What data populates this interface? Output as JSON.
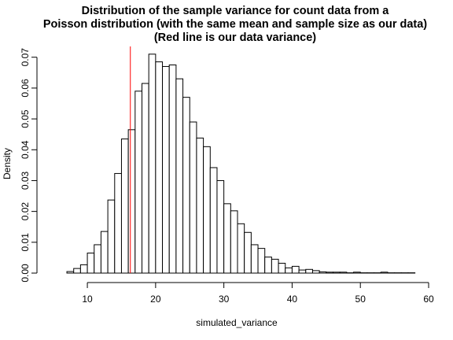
{
  "chart_data": {
    "type": "bar",
    "title": [
      "Distribution of the sample variance for count data from a",
      "Poisson distribution (with the same mean and sample size as our data)",
      "(Red line is our data variance)"
    ],
    "xlabel": "simulated_variance",
    "ylabel": "Density",
    "xlim": [
      7,
      58
    ],
    "ylim": [
      0,
      0.071
    ],
    "x_ticks": [
      10,
      20,
      30,
      40,
      50,
      60
    ],
    "x_tick_labels": [
      "10",
      "20",
      "30",
      "40",
      "50",
      "60"
    ],
    "y_ticks": [
      0,
      0.01,
      0.02,
      0.03,
      0.04,
      0.05,
      0.06,
      0.07
    ],
    "y_tick_labels": [
      "0.00",
      "0.01",
      "0.02",
      "0.03",
      "0.04",
      "0.05",
      "0.06",
      "0.07"
    ],
    "bin_width": 1,
    "bin_starts": [
      7,
      8,
      9,
      10,
      11,
      12,
      13,
      14,
      15,
      16,
      17,
      18,
      19,
      20,
      21,
      22,
      23,
      24,
      25,
      26,
      27,
      28,
      29,
      30,
      31,
      32,
      33,
      34,
      35,
      36,
      37,
      38,
      39,
      40,
      41,
      42,
      43,
      44,
      45,
      46,
      47,
      48,
      49,
      50,
      51,
      52,
      53,
      54,
      55,
      56,
      57
    ],
    "values": [
      0.0005,
      0.0015,
      0.0027,
      0.0065,
      0.0092,
      0.0135,
      0.0237,
      0.0323,
      0.0435,
      0.0465,
      0.059,
      0.0615,
      0.071,
      0.0685,
      0.067,
      0.0675,
      0.063,
      0.057,
      0.049,
      0.0438,
      0.041,
      0.0342,
      0.03,
      0.0225,
      0.0202,
      0.016,
      0.0132,
      0.0092,
      0.008,
      0.0052,
      0.0045,
      0.0032,
      0.0017,
      0.0022,
      0.001,
      0.0012,
      0.0008,
      0.0004,
      0.0003,
      0.0003,
      0.0003,
      0.0001,
      0.0003,
      0.0001,
      0.0001,
      0.0001,
      0.0003,
      0.0001,
      0.0001,
      0.0001,
      0.0001
    ],
    "reference_line": {
      "x": 16.3,
      "color": "#ff0000",
      "orientation": "vertical"
    },
    "grid": false,
    "legend": "none"
  }
}
